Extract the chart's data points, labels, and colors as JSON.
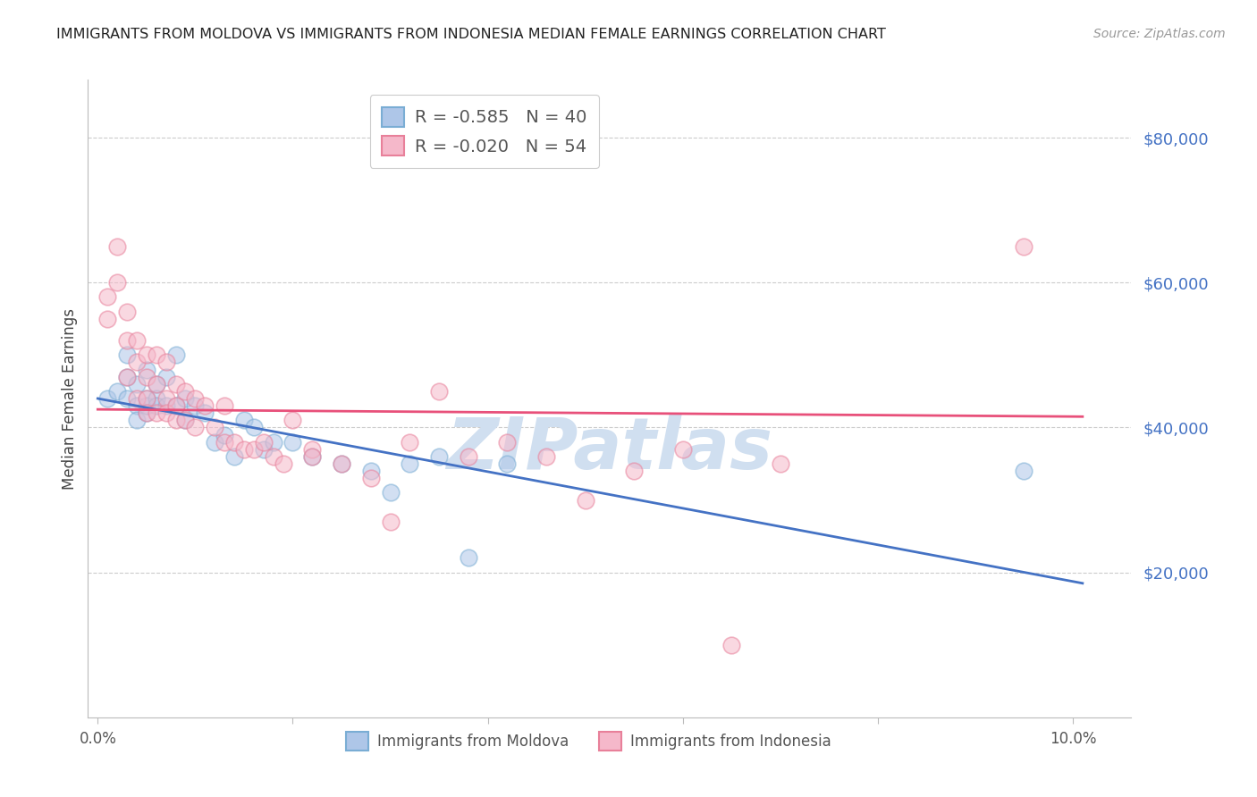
{
  "title": "IMMIGRANTS FROM MOLDOVA VS IMMIGRANTS FROM INDONESIA MEDIAN FEMALE EARNINGS CORRELATION CHART",
  "source": "Source: ZipAtlas.com",
  "ylabel": "Median Female Earnings",
  "ytick_labels": [
    "$80,000",
    "$60,000",
    "$40,000",
    "$20,000"
  ],
  "ytick_values": [
    80000,
    60000,
    40000,
    20000
  ],
  "ylim": [
    0,
    88000
  ],
  "xlim": [
    -0.001,
    0.106
  ],
  "legend_r1": "R = -0.585",
  "legend_n1": "N = 40",
  "legend_r2": "R = -0.020",
  "legend_n2": "N = 54",
  "background_color": "#ffffff",
  "grid_color": "#cccccc",
  "title_color": "#222222",
  "ytick_color": "#4472c4",
  "source_color": "#999999",
  "moldova_color": "#aec6e8",
  "moldova_edge_color": "#7aadd4",
  "moldova_line_color": "#4472c4",
  "indonesia_color": "#f5b8ca",
  "indonesia_edge_color": "#e8809a",
  "indonesia_line_color": "#e8507a",
  "watermark_color": "#d0dff0",
  "moldova_scatter_x": [
    0.001,
    0.002,
    0.003,
    0.003,
    0.003,
    0.004,
    0.004,
    0.004,
    0.005,
    0.005,
    0.005,
    0.005,
    0.006,
    0.006,
    0.006,
    0.007,
    0.007,
    0.008,
    0.008,
    0.009,
    0.009,
    0.01,
    0.011,
    0.012,
    0.013,
    0.014,
    0.015,
    0.016,
    0.017,
    0.018,
    0.02,
    0.022,
    0.025,
    0.028,
    0.03,
    0.032,
    0.035,
    0.038,
    0.042,
    0.095
  ],
  "moldova_scatter_y": [
    44000,
    45000,
    47000,
    44000,
    50000,
    46000,
    43000,
    41000,
    48000,
    44000,
    42000,
    43000,
    46000,
    44000,
    43000,
    47000,
    43000,
    50000,
    43000,
    44000,
    41000,
    43000,
    42000,
    38000,
    39000,
    36000,
    41000,
    40000,
    37000,
    38000,
    38000,
    36000,
    35000,
    34000,
    31000,
    35000,
    36000,
    22000,
    35000,
    34000
  ],
  "indonesia_scatter_x": [
    0.001,
    0.001,
    0.002,
    0.002,
    0.003,
    0.003,
    0.003,
    0.004,
    0.004,
    0.004,
    0.005,
    0.005,
    0.005,
    0.005,
    0.006,
    0.006,
    0.006,
    0.007,
    0.007,
    0.007,
    0.008,
    0.008,
    0.008,
    0.009,
    0.009,
    0.01,
    0.01,
    0.011,
    0.012,
    0.013,
    0.013,
    0.014,
    0.015,
    0.016,
    0.017,
    0.018,
    0.019,
    0.02,
    0.022,
    0.022,
    0.025,
    0.028,
    0.03,
    0.032,
    0.035,
    0.038,
    0.042,
    0.046,
    0.05,
    0.055,
    0.06,
    0.065,
    0.07,
    0.095
  ],
  "indonesia_scatter_y": [
    58000,
    55000,
    65000,
    60000,
    56000,
    52000,
    47000,
    52000,
    49000,
    44000,
    50000,
    47000,
    44000,
    42000,
    50000,
    46000,
    42000,
    49000,
    44000,
    42000,
    46000,
    43000,
    41000,
    45000,
    41000,
    44000,
    40000,
    43000,
    40000,
    43000,
    38000,
    38000,
    37000,
    37000,
    38000,
    36000,
    35000,
    41000,
    37000,
    36000,
    35000,
    33000,
    27000,
    38000,
    45000,
    36000,
    38000,
    36000,
    30000,
    34000,
    37000,
    10000,
    35000,
    65000
  ],
  "moldova_trend_x": [
    0.0,
    0.101
  ],
  "moldova_trend_y": [
    44000,
    18500
  ],
  "indonesia_trend_x": [
    0.0,
    0.101
  ],
  "indonesia_trend_y": [
    42500,
    41500
  ],
  "xticks": [
    0.0,
    0.02,
    0.04,
    0.06,
    0.08,
    0.1
  ],
  "xtick_labels_show": [
    "0.0%",
    "",
    "",
    "",
    "",
    "10.0%"
  ],
  "marker_size": 180,
  "marker_alpha": 0.55,
  "marker_lw": 1.2
}
